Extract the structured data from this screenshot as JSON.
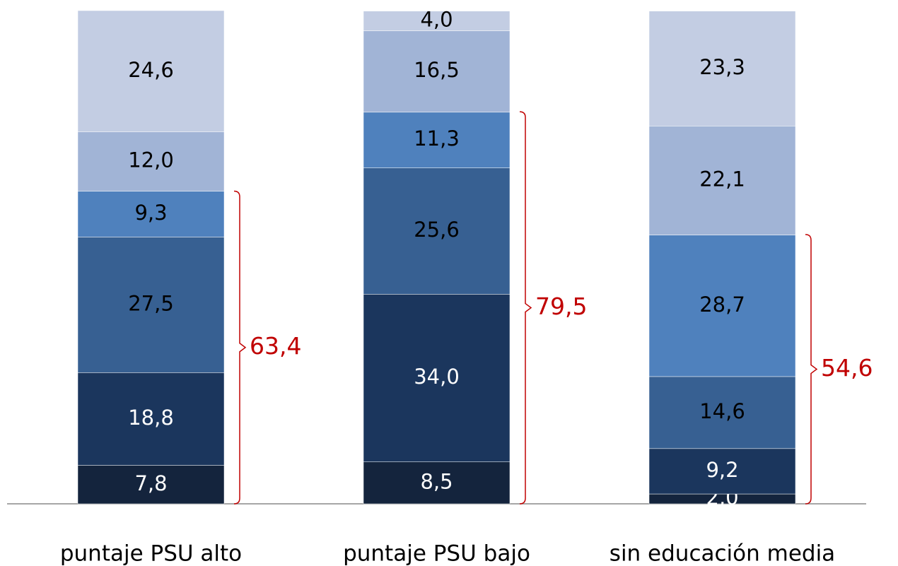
{
  "chart_data": {
    "type": "stacked_bar",
    "categories": [
      "puntaje PSU alto",
      "puntaje PSU bajo",
      "sin educación media"
    ],
    "ylim": [
      0,
      100
    ],
    "series": [
      {
        "color": "#14243d",
        "values": [
          7.8,
          8.5,
          2.0
        ],
        "value_labels": [
          "7,8",
          "8,5",
          "2,0"
        ]
      },
      {
        "color": "#1b365d",
        "values": [
          18.8,
          34.0,
          9.2
        ],
        "value_labels": [
          "18,8",
          "34,0",
          "9,2"
        ]
      },
      {
        "color": "#376092",
        "values": [
          27.5,
          25.6,
          14.6
        ],
        "value_labels": [
          "27,5",
          "25,6",
          "14,6"
        ]
      },
      {
        "color": "#4f81bd",
        "values": [
          9.3,
          11.3,
          28.7
        ],
        "value_labels": [
          "9,3",
          "11,3",
          "28,7"
        ]
      },
      {
        "color": "#a1b4d6",
        "values": [
          12.0,
          16.5,
          22.1
        ],
        "value_labels": [
          "12,0",
          "16,5",
          "22,1"
        ]
      },
      {
        "color": "#c3cde3",
        "values": [
          24.6,
          4.0,
          23.3
        ],
        "value_labels": [
          "24,6",
          "4,0",
          "23,3"
        ]
      }
    ],
    "annotations": [
      {
        "value": 63.4,
        "label": "63,4"
      },
      {
        "value": 79.5,
        "label": "79,5"
      },
      {
        "value": 54.6,
        "label": "54,6"
      }
    ],
    "annotation_color": "#c00000"
  }
}
